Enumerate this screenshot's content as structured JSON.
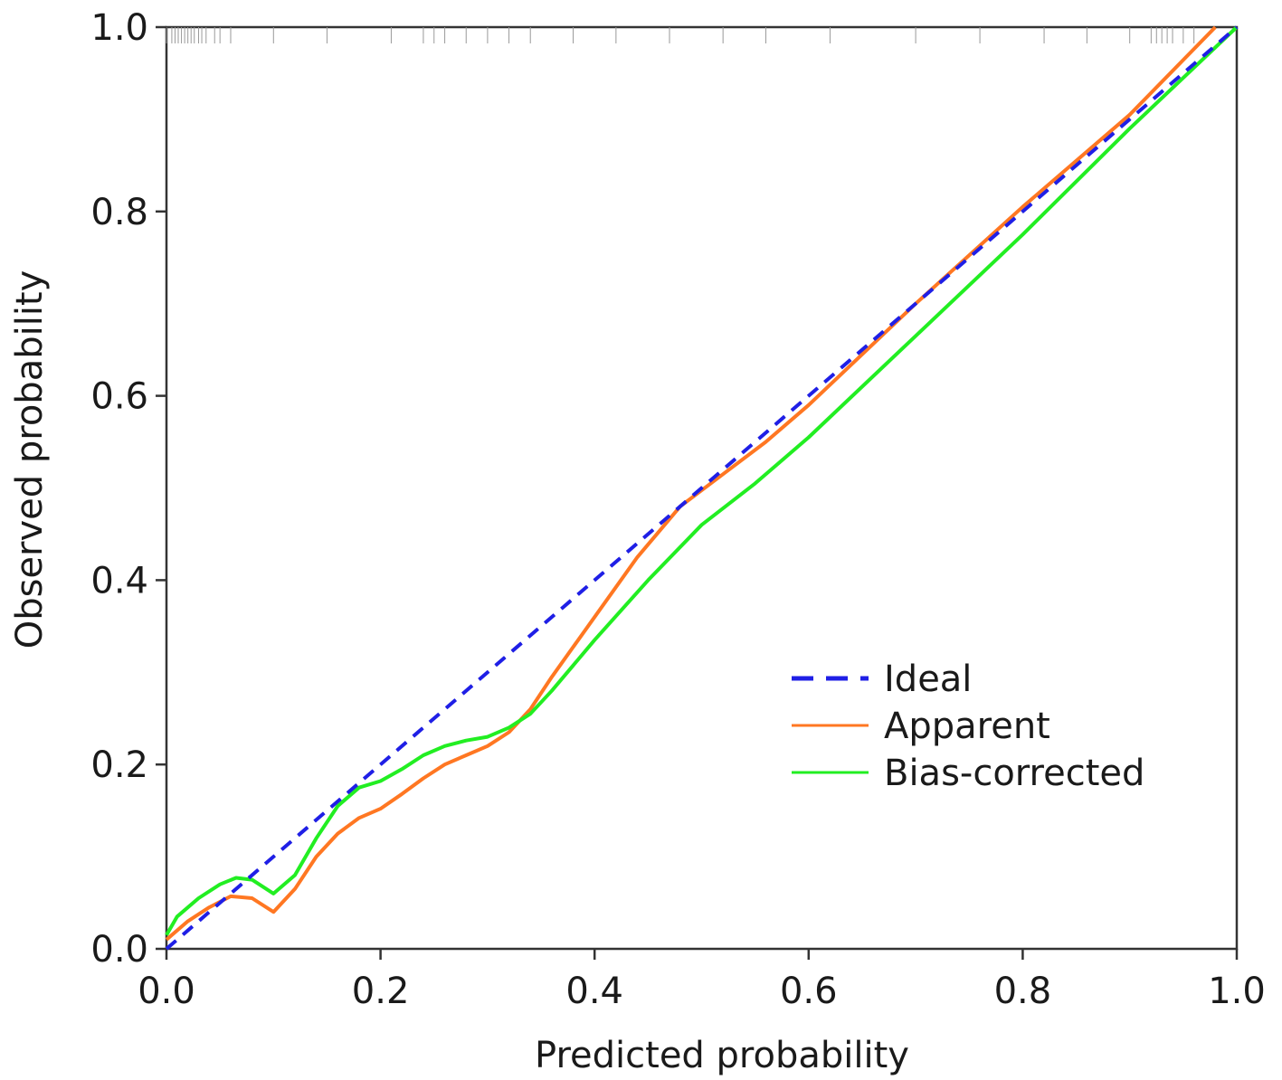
{
  "chart_data": {
    "type": "line",
    "title": "",
    "xlabel": "Predicted probability",
    "ylabel": "Observed probability",
    "xlim": [
      0,
      1
    ],
    "ylim": [
      0,
      1
    ],
    "x_ticks": [
      0.0,
      0.2,
      0.4,
      0.6,
      0.8,
      1.0
    ],
    "y_ticks": [
      0.0,
      0.2,
      0.4,
      0.6,
      0.8,
      1.0
    ],
    "x_tick_labels": [
      "0.0",
      "0.2",
      "0.4",
      "0.6",
      "0.8",
      "1.0"
    ],
    "y_tick_labels": [
      "0.0",
      "0.2",
      "0.4",
      "0.6",
      "0.8",
      "1.0"
    ],
    "legend_position": "center-right",
    "grid": false,
    "series": [
      {
        "name": "Ideal",
        "color": "#1f1fe6",
        "style": "dashed",
        "x": [
          0.0,
          1.0
        ],
        "y": [
          0.0,
          1.0
        ]
      },
      {
        "name": "Apparent",
        "color": "#ff7722",
        "style": "solid",
        "x": [
          0.0,
          0.02,
          0.04,
          0.06,
          0.08,
          0.1,
          0.12,
          0.14,
          0.16,
          0.18,
          0.2,
          0.22,
          0.24,
          0.26,
          0.28,
          0.3,
          0.32,
          0.34,
          0.36,
          0.4,
          0.44,
          0.48,
          0.52,
          0.56,
          0.6,
          0.7,
          0.8,
          0.9,
          0.98
        ],
        "y": [
          0.01,
          0.03,
          0.045,
          0.057,
          0.055,
          0.04,
          0.065,
          0.1,
          0.125,
          0.142,
          0.152,
          0.168,
          0.185,
          0.2,
          0.21,
          0.22,
          0.235,
          0.26,
          0.295,
          0.36,
          0.425,
          0.48,
          0.515,
          0.55,
          0.59,
          0.7,
          0.805,
          0.905,
          1.0
        ]
      },
      {
        "name": "Bias-corrected",
        "color": "#22ee22",
        "style": "solid",
        "x": [
          0.0,
          0.01,
          0.03,
          0.05,
          0.065,
          0.08,
          0.1,
          0.12,
          0.14,
          0.16,
          0.18,
          0.2,
          0.22,
          0.24,
          0.26,
          0.28,
          0.3,
          0.32,
          0.34,
          0.36,
          0.4,
          0.45,
          0.5,
          0.55,
          0.6,
          0.7,
          0.8,
          0.9,
          1.0
        ],
        "y": [
          0.015,
          0.035,
          0.055,
          0.07,
          0.077,
          0.075,
          0.06,
          0.08,
          0.12,
          0.155,
          0.175,
          0.182,
          0.195,
          0.21,
          0.22,
          0.226,
          0.23,
          0.24,
          0.255,
          0.28,
          0.335,
          0.4,
          0.46,
          0.505,
          0.555,
          0.665,
          0.775,
          0.89,
          1.0
        ]
      }
    ],
    "rug_x": [
      0.0,
      0.005,
      0.008,
      0.011,
      0.014,
      0.017,
      0.02,
      0.023,
      0.026,
      0.03,
      0.033,
      0.037,
      0.045,
      0.05,
      0.06,
      0.1,
      0.15,
      0.21,
      0.24,
      0.25,
      0.26,
      0.28,
      0.3,
      0.32,
      0.34,
      0.38,
      0.42,
      0.47,
      0.52,
      0.56,
      0.62,
      0.7,
      0.76,
      0.82,
      0.86,
      0.9,
      0.92,
      0.925,
      0.93,
      0.935,
      0.94,
      0.95,
      0.96
    ]
  }
}
